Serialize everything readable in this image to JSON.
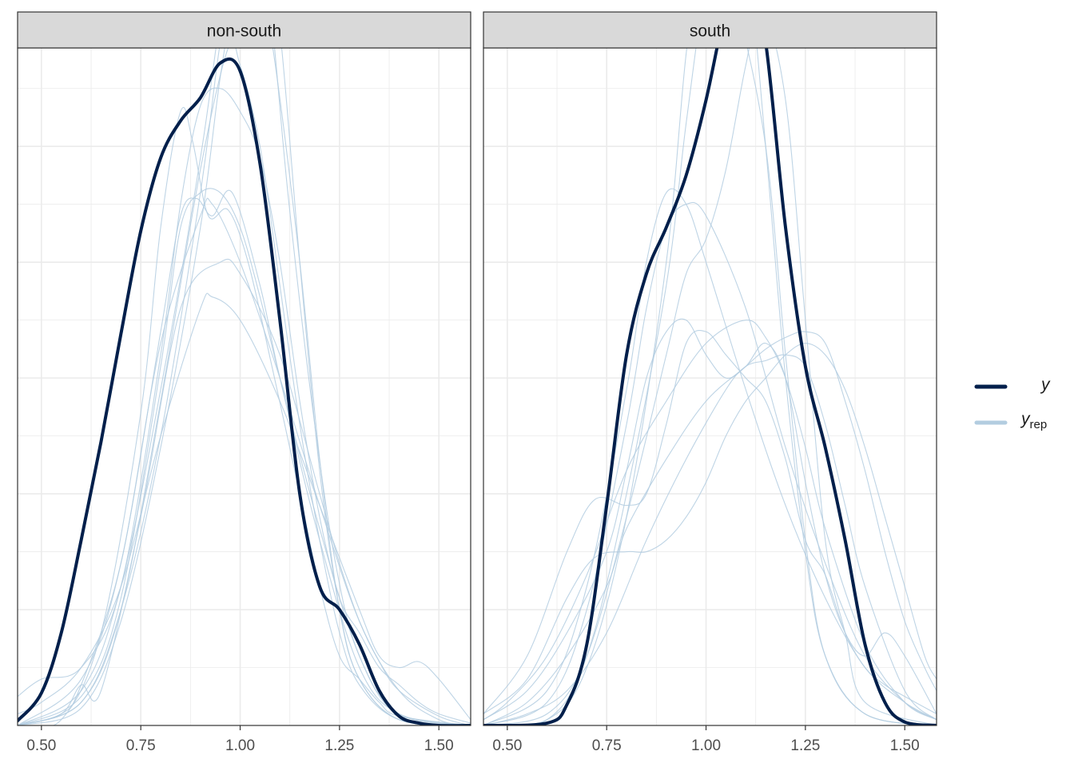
{
  "chart_data": {
    "type": "line",
    "title": "",
    "xlabel": "",
    "ylabel": "",
    "xlim": [
      0.44,
      1.58
    ],
    "x_ticks": [
      "0.50",
      "0.75",
      "1.00",
      "1.25",
      "1.50"
    ],
    "x_tick_values": [
      0.5,
      0.75,
      1.0,
      1.25,
      1.5
    ],
    "y_ticks_labeled": false,
    "grid": true,
    "legend_position": "right",
    "legend": {
      "y_label": "y",
      "yrep_label": "y",
      "yrep_subscript": "rep"
    },
    "colors": {
      "y": "#011f4b",
      "yrep": "#b3cde0",
      "strip_fill": "#d9d9d9",
      "grid": "#ebebeb"
    },
    "panels": [
      {
        "strip_label": "non-south",
        "ylim": [
          0,
          5.85
        ],
        "y": {
          "x": [
            0.44,
            0.5,
            0.55,
            0.6,
            0.65,
            0.7,
            0.75,
            0.8,
            0.85,
            0.9,
            0.95,
            1.0,
            1.05,
            1.1,
            1.15,
            1.2,
            1.25,
            1.3,
            1.35,
            1.4,
            1.45,
            1.5,
            1.58
          ],
          "values": [
            0.04,
            0.28,
            0.8,
            1.6,
            2.45,
            3.38,
            4.27,
            4.9,
            5.22,
            5.42,
            5.72,
            5.65,
            4.85,
            3.5,
            2.0,
            1.2,
            1.0,
            0.7,
            0.3,
            0.08,
            0.02,
            0.0,
            0.0
          ]
        },
        "yrep": [
          {
            "x": [
              0.44,
              0.5,
              0.6,
              0.7,
              0.8,
              0.85,
              0.9,
              0.95,
              1.0,
              1.05,
              1.1,
              1.15,
              1.2,
              1.25,
              1.3,
              1.35,
              1.4,
              1.45,
              1.5,
              1.58
            ],
            "values": [
              0.25,
              0.4,
              0.5,
              1.2,
              3.2,
              4.5,
              5.35,
              5.5,
              5.3,
              4.9,
              4.0,
              2.8,
              1.8,
              1.1,
              0.8,
              0.5,
              0.35,
              0.2,
              0.1,
              0.02
            ]
          },
          {
            "x": [
              0.44,
              0.55,
              0.65,
              0.75,
              0.8,
              0.85,
              0.88,
              0.92,
              0.97,
              1.02,
              1.08,
              1.15,
              1.2,
              1.25,
              1.3,
              1.35,
              1.4,
              1.58
            ],
            "values": [
              0.0,
              0.05,
              0.8,
              2.7,
              4.3,
              5.3,
              5.05,
              4.4,
              4.45,
              4.0,
              3.1,
              2.0,
              1.2,
              0.6,
              0.4,
              0.2,
              0.08,
              0.0
            ]
          },
          {
            "x": [
              0.44,
              0.6,
              0.7,
              0.8,
              0.9,
              0.95,
              1.0,
              1.02,
              1.05,
              1.1,
              1.15,
              1.2,
              1.25,
              1.3,
              1.4,
              1.58
            ],
            "values": [
              0.0,
              0.3,
              1.2,
              2.9,
              4.9,
              6.1,
              7.0,
              7.25,
              7.1,
              6.0,
              4.0,
              2.2,
              1.0,
              0.4,
              0.05,
              0.0
            ]
          },
          {
            "x": [
              0.44,
              0.6,
              0.7,
              0.8,
              0.9,
              0.95,
              1.0,
              1.03,
              1.08,
              1.15,
              1.2,
              1.25,
              1.3,
              1.4,
              1.58
            ],
            "values": [
              0.0,
              0.2,
              1.0,
              2.5,
              4.6,
              5.9,
              6.8,
              6.7,
              5.9,
              4.0,
              2.3,
              1.0,
              0.4,
              0.05,
              0.0
            ]
          },
          {
            "x": [
              0.44,
              0.6,
              0.7,
              0.8,
              0.9,
              0.95,
              1.0,
              1.03,
              1.07,
              1.12,
              1.18,
              1.24,
              1.3,
              1.4,
              1.58
            ],
            "values": [
              0.0,
              0.15,
              0.9,
              2.4,
              4.3,
              5.6,
              6.6,
              6.9,
              6.4,
              4.6,
              2.8,
              1.4,
              0.6,
              0.08,
              0.0
            ]
          },
          {
            "x": [
              0.44,
              0.6,
              0.7,
              0.8,
              0.9,
              0.97,
              1.0,
              1.05,
              1.1,
              1.15,
              1.2,
              1.25,
              1.3,
              1.4,
              1.58
            ],
            "values": [
              0.0,
              0.2,
              1.0,
              2.8,
              4.8,
              5.85,
              5.7,
              5.0,
              3.8,
              2.6,
              1.6,
              0.8,
              0.35,
              0.05,
              0.0
            ]
          },
          {
            "x": [
              0.44,
              0.6,
              0.7,
              0.8,
              0.85,
              0.9,
              0.95,
              1.0,
              1.05,
              1.1,
              1.2,
              1.3,
              1.4,
              1.58
            ],
            "values": [
              0.0,
              0.25,
              1.1,
              3.1,
              4.3,
              4.6,
              4.6,
              4.3,
              3.7,
              3.0,
              1.7,
              0.6,
              0.1,
              0.0
            ]
          },
          {
            "x": [
              0.44,
              0.6,
              0.7,
              0.8,
              0.85,
              0.89,
              0.93,
              0.98,
              1.05,
              1.1,
              1.2,
              1.3,
              1.4,
              1.58
            ],
            "values": [
              0.0,
              0.4,
              1.4,
              3.4,
              4.4,
              4.55,
              4.4,
              4.6,
              3.8,
              3.0,
              1.6,
              0.5,
              0.1,
              0.0
            ]
          },
          {
            "x": [
              0.44,
              0.5,
              0.6,
              0.7,
              0.8,
              0.9,
              0.93,
              1.0,
              1.1,
              1.2,
              1.3,
              1.35,
              1.4,
              1.45,
              1.5,
              1.58
            ],
            "values": [
              0.1,
              0.2,
              0.5,
              1.2,
              2.5,
              3.6,
              3.7,
              3.5,
              2.8,
              1.9,
              1.0,
              0.6,
              0.5,
              0.55,
              0.4,
              0.05
            ]
          },
          {
            "x": [
              0.44,
              0.55,
              0.6,
              0.7,
              0.8,
              0.9,
              0.93,
              1.0,
              1.1,
              1.2,
              1.3,
              1.4,
              1.5,
              1.58
            ],
            "values": [
              0.0,
              0.1,
              0.35,
              1.4,
              3.3,
              4.4,
              4.5,
              4.0,
              3.0,
              1.9,
              0.9,
              0.3,
              0.05,
              0.0
            ]
          },
          {
            "x": [
              0.44,
              0.55,
              0.6,
              0.65,
              0.75,
              0.85,
              0.95,
              1.0,
              1.1,
              1.2,
              1.25,
              1.3,
              1.35,
              1.4,
              1.5,
              1.58
            ],
            "values": [
              0.0,
              0.1,
              0.35,
              0.3,
              1.8,
              3.6,
              4.0,
              3.9,
              3.2,
              2.0,
              1.4,
              0.9,
              0.55,
              0.3,
              0.08,
              0.0
            ]
          }
        ]
      },
      {
        "strip_label": "south",
        "ylim": [
          0,
          5.85
        ],
        "y": {
          "x": [
            0.44,
            0.6,
            0.65,
            0.7,
            0.75,
            0.8,
            0.85,
            0.9,
            0.95,
            1.0,
            1.05,
            1.1,
            1.15,
            1.2,
            1.25,
            1.3,
            1.35,
            1.4,
            1.45,
            1.5,
            1.58
          ],
          "values": [
            0.0,
            0.02,
            0.18,
            0.7,
            1.9,
            3.2,
            3.9,
            4.3,
            4.75,
            5.4,
            6.2,
            6.75,
            5.9,
            4.3,
            3.1,
            2.4,
            1.6,
            0.7,
            0.2,
            0.03,
            0.0
          ]
        },
        "yrep": [
          {
            "x": [
              0.44,
              0.6,
              0.7,
              0.8,
              0.9,
              0.95,
              1.0,
              1.05,
              1.1,
              1.15,
              1.2,
              1.25,
              1.3,
              1.4,
              1.58
            ],
            "values": [
              0.0,
              0.05,
              0.5,
              1.8,
              4.0,
              5.8,
              7.0,
              7.5,
              6.8,
              5.0,
              3.0,
              1.5,
              0.6,
              0.1,
              0.0
            ]
          },
          {
            "x": [
              0.44,
              0.6,
              0.7,
              0.8,
              0.9,
              0.95,
              1.0,
              1.04,
              1.08,
              1.15,
              1.2,
              1.25,
              1.3,
              1.4,
              1.58
            ],
            "values": [
              0.0,
              0.05,
              0.6,
              2.0,
              3.8,
              5.2,
              6.4,
              6.6,
              6.2,
              5.0,
              3.2,
              1.6,
              0.6,
              0.1,
              0.0
            ]
          },
          {
            "x": [
              0.44,
              0.6,
              0.7,
              0.8,
              0.9,
              0.95,
              1.0,
              1.05,
              1.1,
              1.14,
              1.2,
              1.25,
              1.3,
              1.35,
              1.4,
              1.58
            ],
            "values": [
              0.0,
              0.1,
              0.6,
              1.8,
              3.2,
              3.9,
              4.2,
              4.8,
              5.7,
              6.2,
              5.4,
              3.5,
              1.6,
              0.8,
              0.2,
              0.0
            ]
          },
          {
            "x": [
              0.44,
              0.6,
              0.7,
              0.8,
              0.85,
              0.9,
              0.95,
              1.0,
              1.1,
              1.2,
              1.3,
              1.4,
              1.5,
              1.58
            ],
            "values": [
              0.0,
              0.3,
              1.2,
              2.9,
              4.0,
              4.6,
              4.5,
              4.0,
              2.9,
              1.9,
              1.1,
              0.5,
              0.2,
              0.05
            ]
          },
          {
            "x": [
              0.44,
              0.6,
              0.7,
              0.8,
              0.85,
              0.9,
              0.95,
              1.0,
              1.1,
              1.2,
              1.3,
              1.4,
              1.5,
              1.58
            ],
            "values": [
              0.0,
              0.2,
              1.0,
              2.6,
              3.6,
              4.3,
              4.5,
              4.4,
              3.6,
              2.4,
              1.4,
              0.6,
              0.2,
              0.05
            ]
          },
          {
            "x": [
              0.44,
              0.55,
              0.65,
              0.72,
              0.8,
              0.85,
              0.9,
              0.95,
              1.0,
              1.05,
              1.1,
              1.15,
              1.2,
              1.25,
              1.3,
              1.35,
              1.4,
              1.45,
              1.5,
              1.58
            ],
            "values": [
              0.1,
              0.6,
              1.5,
              1.95,
              1.9,
              2.0,
              2.6,
              3.3,
              3.4,
              3.2,
              3.0,
              2.8,
              2.3,
              1.6,
              1.3,
              0.8,
              0.5,
              0.35,
              0.25,
              0.1
            ]
          },
          {
            "x": [
              0.44,
              0.55,
              0.65,
              0.75,
              0.8,
              0.85,
              0.9,
              0.95,
              1.0,
              1.05,
              1.1,
              1.15,
              1.2,
              1.25,
              1.3,
              1.35,
              1.4,
              1.45,
              1.5,
              1.58
            ],
            "values": [
              0.05,
              0.3,
              0.8,
              1.5,
              2.2,
              3.0,
              3.4,
              3.5,
              3.2,
              3.0,
              3.1,
              3.3,
              3.0,
              2.1,
              1.3,
              0.8,
              0.6,
              0.8,
              0.6,
              0.1
            ]
          },
          {
            "x": [
              0.44,
              0.5,
              0.6,
              0.7,
              0.8,
              0.9,
              1.0,
              1.1,
              1.15,
              1.2,
              1.25,
              1.3,
              1.4,
              1.5,
              1.58
            ],
            "values": [
              0.05,
              0.2,
              0.6,
              1.3,
              2.2,
              2.8,
              3.3,
              3.5,
              3.35,
              3.0,
              2.4,
              1.7,
              0.7,
              0.2,
              0.05
            ]
          },
          {
            "x": [
              0.44,
              0.55,
              0.65,
              0.72,
              0.8,
              0.85,
              0.9,
              0.95,
              1.0,
              1.05,
              1.1,
              1.15,
              1.2,
              1.25,
              1.3,
              1.35,
              1.4,
              1.45,
              1.5,
              1.55,
              1.58
            ],
            "values": [
              0.1,
              0.4,
              1.1,
              1.45,
              1.5,
              1.5,
              1.6,
              1.8,
              2.1,
              2.5,
              2.8,
              3.0,
              3.2,
              3.3,
              3.2,
              2.9,
              2.4,
              1.8,
              1.2,
              0.6,
              0.4
            ]
          },
          {
            "x": [
              0.44,
              0.55,
              0.65,
              0.75,
              0.8,
              0.9,
              1.0,
              1.1,
              1.15,
              1.2,
              1.25,
              1.3,
              1.35,
              1.4,
              1.45,
              1.5,
              1.55,
              1.58
            ],
            "values": [
              0.0,
              0.2,
              0.6,
              1.2,
              1.7,
              2.3,
              2.8,
              3.1,
              3.25,
              3.35,
              3.4,
              3.3,
              2.8,
              2.2,
              1.5,
              0.9,
              0.5,
              0.3
            ]
          },
          {
            "x": [
              0.44,
              0.55,
              0.65,
              0.75,
              0.85,
              0.95,
              1.05,
              1.1,
              1.15,
              1.2,
              1.25,
              1.3,
              1.35,
              1.4,
              1.5,
              1.58
            ],
            "values": [
              0.0,
              0.1,
              0.3,
              0.8,
              1.6,
              2.3,
              2.9,
              3.1,
              3.15,
              3.2,
              3.1,
              2.6,
              1.9,
              1.2,
              0.3,
              0.05
            ]
          }
        ]
      }
    ]
  }
}
